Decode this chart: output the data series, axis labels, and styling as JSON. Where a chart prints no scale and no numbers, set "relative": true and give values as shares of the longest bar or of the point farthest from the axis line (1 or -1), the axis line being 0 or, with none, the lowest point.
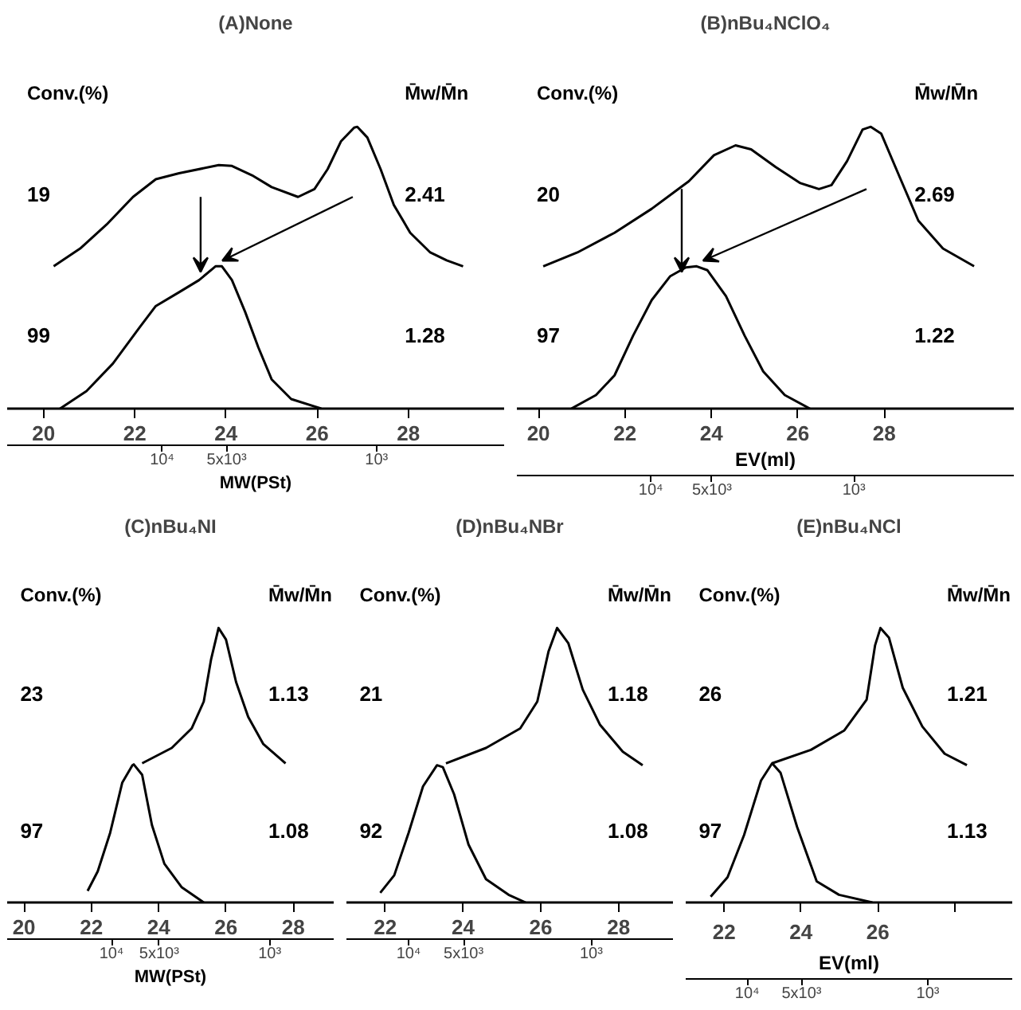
{
  "chart_data": [
    {
      "type": "line",
      "title": "(A)None",
      "relative": true,
      "x2label": "MW(PSt)",
      "log": "x2",
      "xlim": [
        19.2,
        30.1
      ],
      "xticks": [
        20,
        22,
        24,
        26,
        28
      ],
      "x2lim": [
        52800,
        254
      ],
      "x2ticks": [
        {
          "value": 10000,
          "label": "10⁴"
        },
        {
          "value": 5000,
          "label": "5x10³"
        },
        {
          "value": 1000,
          "label": "10³"
        }
      ],
      "annotations": [
        "Conv.(%)",
        "M̄w/M̄n",
        "19",
        "2.41",
        "99",
        "1.28"
      ],
      "series": [
        {
          "color": "#000000",
          "x": [
            20.22,
            20.8,
            21.38,
            21.96,
            22.46,
            22.97,
            23.84,
            24.13,
            24.57,
            25.0,
            25.58,
            25.94,
            26.23,
            26.52,
            26.81,
            26.88,
            27.1,
            27.39,
            27.68,
            28.04,
            28.48,
            28.84,
            29.2
          ],
          "values": [
            0.505,
            0.568,
            0.653,
            0.751,
            0.814,
            0.835,
            0.864,
            0.861,
            0.828,
            0.786,
            0.751,
            0.779,
            0.85,
            0.948,
            0.997,
            1.0,
            0.962,
            0.85,
            0.723,
            0.624,
            0.554,
            0.526,
            0.505
          ]
        },
        {
          "color": "#000000",
          "x": [
            20.36,
            20.94,
            21.52,
            22.1,
            22.46,
            22.97,
            23.41,
            23.77,
            23.91,
            24.13,
            24.42,
            24.71,
            25.0,
            25.43,
            26.09
          ],
          "values": [
            0.0,
            0.062,
            0.16,
            0.287,
            0.364,
            0.413,
            0.456,
            0.505,
            0.505,
            0.456,
            0.343,
            0.217,
            0.104,
            0.034,
            0.0
          ]
        }
      ]
    },
    {
      "type": "line",
      "title": "(B)nBu₄NClO₄",
      "relative": true,
      "xlabel": "EV(ml)",
      "log": "x2",
      "xlim": [
        19.5,
        31.0
      ],
      "xticks": [
        20,
        22,
        24,
        26,
        28
      ],
      "x2lim": [
        45700,
        163
      ],
      "x2ticks": [
        {
          "value": 10000,
          "label": "10⁴"
        },
        {
          "value": 5000,
          "label": "5x10³"
        },
        {
          "value": 1000,
          "label": "10³"
        }
      ],
      "annotations": [
        "Conv.(%)",
        "M̄w/M̄n",
        "20",
        "2.69",
        "97",
        "1.22"
      ],
      "series": [
        {
          "color": "#000000",
          "x": [
            20.11,
            20.9,
            21.76,
            22.62,
            23.48,
            24.06,
            24.56,
            24.92,
            25.49,
            26.06,
            26.49,
            26.78,
            27.14,
            27.5,
            27.69,
            27.93,
            28.36,
            28.79,
            29.36,
            30.08
          ],
          "values": [
            0.505,
            0.554,
            0.624,
            0.709,
            0.807,
            0.899,
            0.934,
            0.92,
            0.857,
            0.8,
            0.779,
            0.793,
            0.878,
            0.99,
            1.0,
            0.976,
            0.821,
            0.667,
            0.568,
            0.505
          ]
        },
        {
          "color": "#000000",
          "x": [
            20.76,
            21.33,
            21.76,
            22.19,
            22.62,
            23.05,
            23.41,
            23.66,
            23.91,
            24.34,
            24.77,
            25.2,
            25.7,
            26.28
          ],
          "values": [
            0.0,
            0.048,
            0.118,
            0.259,
            0.385,
            0.47,
            0.501,
            0.505,
            0.491,
            0.399,
            0.259,
            0.132,
            0.048,
            0.0
          ]
        }
      ]
    },
    {
      "type": "line",
      "title": "(C)nBu₄NI",
      "relative": true,
      "x2label": "MW(PSt)",
      "log": "x2",
      "xlim": [
        19.5,
        29.2
      ],
      "xticks": [
        20,
        22,
        24,
        26,
        28
      ],
      "x2lim": [
        45700,
        394
      ],
      "x2ticks": [
        {
          "value": 10000,
          "label": "10⁴"
        },
        {
          "value": 5000,
          "label": "5x10³"
        },
        {
          "value": 1000,
          "label": "10³"
        }
      ],
      "annotations": [
        "Conv.(%)",
        "M̄w/M̄n",
        "23",
        "1.13",
        "97",
        "1.08"
      ],
      "series": [
        {
          "color": "#000000",
          "x": [
            23.51,
            24.39,
            24.98,
            25.34,
            25.56,
            25.78,
            26.0,
            26.3,
            26.66,
            27.11,
            27.77
          ],
          "values": [
            0.507,
            0.563,
            0.634,
            0.732,
            0.887,
            1.0,
            0.958,
            0.803,
            0.676,
            0.577,
            0.507
          ]
        },
        {
          "color": "#000000",
          "x": [
            21.89,
            22.19,
            22.56,
            22.92,
            23.22,
            23.26,
            23.51,
            23.8,
            24.17,
            24.68,
            25.34
          ],
          "values": [
            0.042,
            0.113,
            0.254,
            0.437,
            0.5,
            0.503,
            0.465,
            0.282,
            0.141,
            0.056,
            0.0
          ]
        }
      ]
    },
    {
      "type": "line",
      "title": "(D)nBu₄NBr",
      "relative": true,
      "log": "x2",
      "xlim": [
        21.0,
        29.4
      ],
      "xticks": [
        22,
        24,
        26,
        28
      ],
      "x2lim": [
        21900,
        357
      ],
      "x2ticks": [
        {
          "value": 10000,
          "label": "10⁴"
        },
        {
          "value": 5000,
          "label": "5x10³"
        },
        {
          "value": 1000,
          "label": "10³"
        }
      ],
      "annotations": [
        "Conv.(%)",
        "M̄w/M̄n",
        "21",
        "1.18",
        "92",
        "1.08"
      ],
      "series": [
        {
          "color": "#000000",
          "x": [
            23.56,
            24.59,
            25.47,
            25.91,
            26.2,
            26.42,
            26.71,
            27.08,
            27.52,
            28.11,
            28.62
          ],
          "values": [
            0.507,
            0.563,
            0.634,
            0.732,
            0.915,
            1.0,
            0.944,
            0.775,
            0.648,
            0.549,
            0.5
          ]
        },
        {
          "color": "#000000",
          "x": [
            21.87,
            22.23,
            22.6,
            22.97,
            23.33,
            23.48,
            23.77,
            24.14,
            24.59,
            25.17,
            25.61
          ],
          "values": [
            0.035,
            0.099,
            0.254,
            0.423,
            0.5,
            0.493,
            0.394,
            0.211,
            0.085,
            0.028,
            0.0
          ]
        }
      ]
    },
    {
      "type": "line",
      "title": "(E)nBu₄NCl",
      "relative": true,
      "xlabel": "EV(ml)",
      "log": "x2",
      "xlim": [
        21.0,
        29.5
      ],
      "xticks": [
        22,
        24,
        26,
        {
          "value": 28,
          "label": null
        }
      ],
      "x2lim": [
        21900,
        341
      ],
      "x2ticks": [
        {
          "value": 10000,
          "label": "10⁴"
        },
        {
          "value": 5000,
          "label": "5x10³"
        },
        {
          "value": 1000,
          "label": "10³"
        }
      ],
      "annotations": [
        "Conv.(%)",
        "M̄w/M̄n",
        "26",
        "1.21",
        "97",
        "1.13"
      ],
      "series": [
        {
          "color": "#000000",
          "x": [
            23.25,
            24.26,
            25.13,
            25.71,
            25.93,
            26.07,
            26.29,
            26.65,
            27.16,
            27.74,
            28.32
          ],
          "values": [
            0.507,
            0.556,
            0.627,
            0.739,
            0.937,
            1.0,
            0.965,
            0.782,
            0.641,
            0.542,
            0.5
          ]
        },
        {
          "color": "#000000",
          "x": [
            21.65,
            22.09,
            22.52,
            22.96,
            23.25,
            23.47,
            23.9,
            24.41,
            24.99,
            25.86
          ],
          "values": [
            0.021,
            0.092,
            0.246,
            0.444,
            0.507,
            0.472,
            0.275,
            0.077,
            0.028,
            0.0
          ]
        }
      ]
    }
  ]
}
